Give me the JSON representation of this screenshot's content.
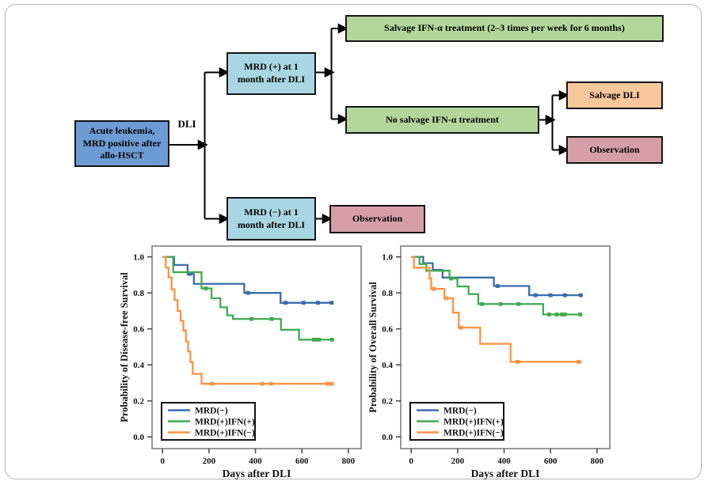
{
  "flowchart": {
    "dli_label": "DLI",
    "boxes": {
      "acute": {
        "label": "Acute leukemia, MRD positive after allo-HSCT",
        "fill": "#6d9bd3"
      },
      "mrd_pos": {
        "label": "MRD (+) at 1 month after DLI",
        "fill": "#a9d6e3"
      },
      "mrd_neg": {
        "label": "MRD (−) at 1 month after DLI",
        "fill": "#a9d6e3"
      },
      "salvage_ifn": {
        "label": "Salvage IFN-α treatment (2–3 times per week for 6 months)",
        "fill": "#b3d79b"
      },
      "no_salvage": {
        "label": "No salvage IFN-α treatment",
        "fill": "#b3d79b"
      },
      "salvage_dli": {
        "label": "Salvage DLI",
        "fill": "#f8c89d"
      },
      "observation_upper": {
        "label": "Observation",
        "fill": "#d69fa7"
      },
      "observation_lower": {
        "label": "Observation",
        "fill": "#d69fa7"
      }
    }
  },
  "chart_data": [
    {
      "type": "line",
      "subtype": "kaplan_meier_step",
      "title": "",
      "xlabel": "Days after DLI",
      "ylabel": "Probability of Disease-free Survival",
      "xlim": [
        -45,
        855
      ],
      "ylim": [
        -0.065,
        1.06
      ],
      "xticks": [
        0,
        200,
        400,
        600,
        800
      ],
      "yticks": [
        0.0,
        0.2,
        0.4,
        0.6,
        0.8,
        1.0
      ],
      "grid": false,
      "legend_position": "lower-left",
      "frame_color": "#7f7f7f",
      "series": [
        {
          "name": "MRD(−)",
          "color": "#3a6cac",
          "steps": [
            [
              0,
              1.0
            ],
            [
              50,
              0.955
            ],
            [
              108,
              0.905
            ],
            [
              135,
              0.85
            ],
            [
              352,
              0.8
            ],
            [
              508,
              0.745
            ],
            [
              735,
              0.745
            ]
          ],
          "censors": [
            [
              118,
              0.905
            ],
            [
              368,
              0.8
            ],
            [
              530,
              0.745
            ],
            [
              607,
              0.745
            ],
            [
              669,
              0.745
            ],
            [
              728,
              0.745
            ]
          ]
        },
        {
          "name": "MRD(+)IFN(+)",
          "color": "#3faa50",
          "steps": [
            [
              0,
              1.0
            ],
            [
              46,
              0.915
            ],
            [
              168,
              0.825
            ],
            [
              211,
              0.77
            ],
            [
              249,
              0.72
            ],
            [
              278,
              0.675
            ],
            [
              303,
              0.655
            ],
            [
              510,
              0.595
            ],
            [
              588,
              0.54
            ],
            [
              735,
              0.54
            ]
          ],
          "censors": [
            [
              186,
              0.825
            ],
            [
              383,
              0.655
            ],
            [
              470,
              0.655
            ],
            [
              652,
              0.54
            ],
            [
              663,
              0.54
            ],
            [
              674,
              0.54
            ],
            [
              730,
              0.54
            ]
          ]
        },
        {
          "name": "MRD(+)IFN(−)",
          "color": "#f79443",
          "steps": [
            [
              0,
              1.0
            ],
            [
              14,
              0.94
            ],
            [
              26,
              0.885
            ],
            [
              39,
              0.82
            ],
            [
              52,
              0.76
            ],
            [
              65,
              0.7
            ],
            [
              78,
              0.645
            ],
            [
              90,
              0.59
            ],
            [
              101,
              0.53
            ],
            [
              110,
              0.475
            ],
            [
              120,
              0.415
            ],
            [
              130,
              0.35
            ],
            [
              168,
              0.295
            ],
            [
              735,
              0.295
            ]
          ],
          "censors": [
            [
              212,
              0.295
            ],
            [
              430,
              0.295
            ],
            [
              467,
              0.295
            ],
            [
              710,
              0.295
            ],
            [
              729,
              0.295
            ]
          ]
        }
      ]
    },
    {
      "type": "line",
      "subtype": "kaplan_meier_step",
      "title": "",
      "xlabel": "Days after DLI",
      "ylabel": "Probability of Overall Survival",
      "xlim": [
        -45,
        855
      ],
      "ylim": [
        -0.065,
        1.06
      ],
      "xticks": [
        0,
        200,
        400,
        600,
        800
      ],
      "yticks": [
        0.0,
        0.2,
        0.4,
        0.6,
        0.8,
        1.0
      ],
      "grid": false,
      "legend_position": "lower-left",
      "frame_color": "#7f7f7f",
      "series": [
        {
          "name": "MRD(−)",
          "color": "#3a6cac",
          "steps": [
            [
              0,
              1.0
            ],
            [
              52,
              0.965
            ],
            [
              93,
              0.928
            ],
            [
              135,
              0.885
            ],
            [
              356,
              0.838
            ],
            [
              508,
              0.787
            ],
            [
              735,
              0.787
            ]
          ],
          "censors": [
            [
              372,
              0.838
            ],
            [
              535,
              0.787
            ],
            [
              600,
              0.787
            ],
            [
              662,
              0.787
            ],
            [
              730,
              0.787
            ]
          ]
        },
        {
          "name": "MRD(+)IFN(+)",
          "color": "#3faa50",
          "steps": [
            [
              0,
              1.0
            ],
            [
              36,
              0.96
            ],
            [
              65,
              0.923
            ],
            [
              165,
              0.88
            ],
            [
              199,
              0.836
            ],
            [
              247,
              0.793
            ],
            [
              289,
              0.738
            ],
            [
              568,
              0.68
            ],
            [
              735,
              0.68
            ]
          ],
          "censors": [
            [
              172,
              0.88
            ],
            [
              305,
              0.738
            ],
            [
              385,
              0.738
            ],
            [
              462,
              0.738
            ],
            [
              594,
              0.68
            ],
            [
              627,
              0.68
            ],
            [
              649,
              0.68
            ],
            [
              661,
              0.68
            ],
            [
              728,
              0.68
            ]
          ]
        },
        {
          "name": "MRD(+)IFN(−)",
          "color": "#f79443",
          "steps": [
            [
              0,
              1.0
            ],
            [
              12,
              0.94
            ],
            [
              79,
              0.88
            ],
            [
              86,
              0.822
            ],
            [
              143,
              0.77
            ],
            [
              180,
              0.69
            ],
            [
              205,
              0.607
            ],
            [
              297,
              0.517
            ],
            [
              428,
              0.417
            ],
            [
              735,
              0.417
            ]
          ],
          "censors": [
            [
              98,
              0.822
            ],
            [
              152,
              0.77
            ],
            [
              214,
              0.607
            ],
            [
              458,
              0.417
            ],
            [
              720,
              0.417
            ]
          ]
        }
      ]
    }
  ]
}
